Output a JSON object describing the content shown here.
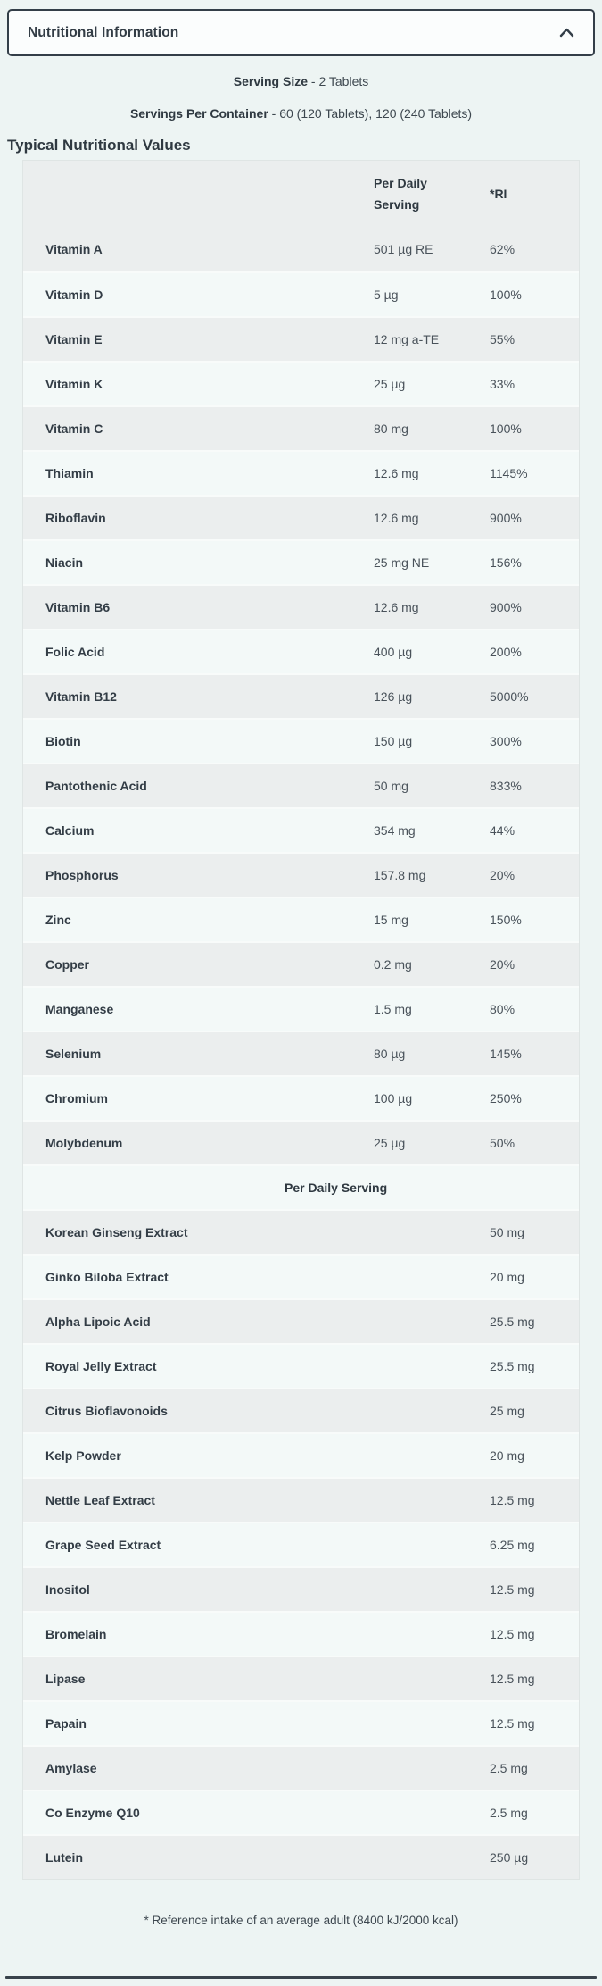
{
  "accordion": {
    "title": "Nutritional Information",
    "chevron_icon": "chevron-up-icon"
  },
  "serving": {
    "size_label": "Serving Size",
    "size_value": "- 2 Tablets",
    "container_label": "Servings Per Container",
    "container_value": "- 60 (120 Tablets), 120 (240 Tablets)"
  },
  "section_title": "Typical Nutritional Values",
  "table": {
    "header": {
      "col2": "Per Daily Serving",
      "col3": "*RI"
    },
    "rows": [
      {
        "name": "Vitamin A",
        "amount": "501 µg RE",
        "ri": "62%"
      },
      {
        "name": "Vitamin D",
        "amount": "5 µg",
        "ri": "100%"
      },
      {
        "name": "Vitamin E",
        "amount": "12 mg a-TE",
        "ri": "55%"
      },
      {
        "name": "Vitamin K",
        "amount": "25 µg",
        "ri": "33%"
      },
      {
        "name": "Vitamin C",
        "amount": "80 mg",
        "ri": "100%"
      },
      {
        "name": "Thiamin",
        "amount": "12.6 mg",
        "ri": "1145%"
      },
      {
        "name": "Riboflavin",
        "amount": "12.6 mg",
        "ri": "900%"
      },
      {
        "name": "Niacin",
        "amount": "25 mg NE",
        "ri": "156%"
      },
      {
        "name": "Vitamin B6",
        "amount": "12.6 mg",
        "ri": "900%"
      },
      {
        "name": "Folic Acid",
        "amount": "400 µg",
        "ri": "200%"
      },
      {
        "name": "Vitamin B12",
        "amount": "126 µg",
        "ri": "5000%"
      },
      {
        "name": "Biotin",
        "amount": "150 µg",
        "ri": "300%"
      },
      {
        "name": "Pantothenic Acid",
        "amount": "50 mg",
        "ri": "833%"
      },
      {
        "name": "Calcium",
        "amount": "354 mg",
        "ri": "44%"
      },
      {
        "name": "Phosphorus",
        "amount": "157.8 mg",
        "ri": "20%"
      },
      {
        "name": "Zinc",
        "amount": "15 mg",
        "ri": "150%"
      },
      {
        "name": "Copper",
        "amount": "0.2 mg",
        "ri": "20%"
      },
      {
        "name": "Manganese",
        "amount": "1.5 mg",
        "ri": "80%"
      },
      {
        "name": "Selenium",
        "amount": "80 µg",
        "ri": "145%"
      },
      {
        "name": "Chromium",
        "amount": "100 µg",
        "ri": "250%"
      },
      {
        "name": "Molybdenum",
        "amount": "25 µg",
        "ri": "50%"
      }
    ],
    "subheader": "Per Daily Serving",
    "herbal_rows": [
      {
        "name": "Korean Ginseng Extract",
        "amount": "50 mg"
      },
      {
        "name": "Ginko Biloba Extract",
        "amount": "20 mg"
      },
      {
        "name": "Alpha Lipoic Acid",
        "amount": "25.5 mg"
      },
      {
        "name": "Royal Jelly Extract",
        "amount": "25.5 mg"
      },
      {
        "name": "Citrus Bioflavonoids",
        "amount": "25 mg"
      },
      {
        "name": "Kelp Powder",
        "amount": "20 mg"
      },
      {
        "name": "Nettle Leaf Extract",
        "amount": "12.5 mg"
      },
      {
        "name": "Grape Seed Extract",
        "amount": "6.25 mg"
      },
      {
        "name": "Inositol",
        "amount": "12.5 mg"
      },
      {
        "name": "Bromelain",
        "amount": "12.5 mg"
      },
      {
        "name": "Lipase",
        "amount": "12.5 mg"
      },
      {
        "name": "Papain",
        "amount": "12.5 mg"
      },
      {
        "name": "Amylase",
        "amount": "2.5 mg"
      },
      {
        "name": "Co Enzyme Q10",
        "amount": "2.5 mg"
      },
      {
        "name": "Lutein",
        "amount": "250 µg"
      }
    ]
  },
  "footnote": "* Reference intake of an average adult (8400 kJ/2000 kcal)",
  "colors": {
    "border_dark": "#333e48",
    "page_bg": "#edf4f3",
    "row_gray": "#ebeeee",
    "row_light": "#f3f9f8",
    "box_bg": "#fbfdfd",
    "text_dark": "#333d46",
    "text_value": "#49525a",
    "divider_dark": "#39424b"
  }
}
